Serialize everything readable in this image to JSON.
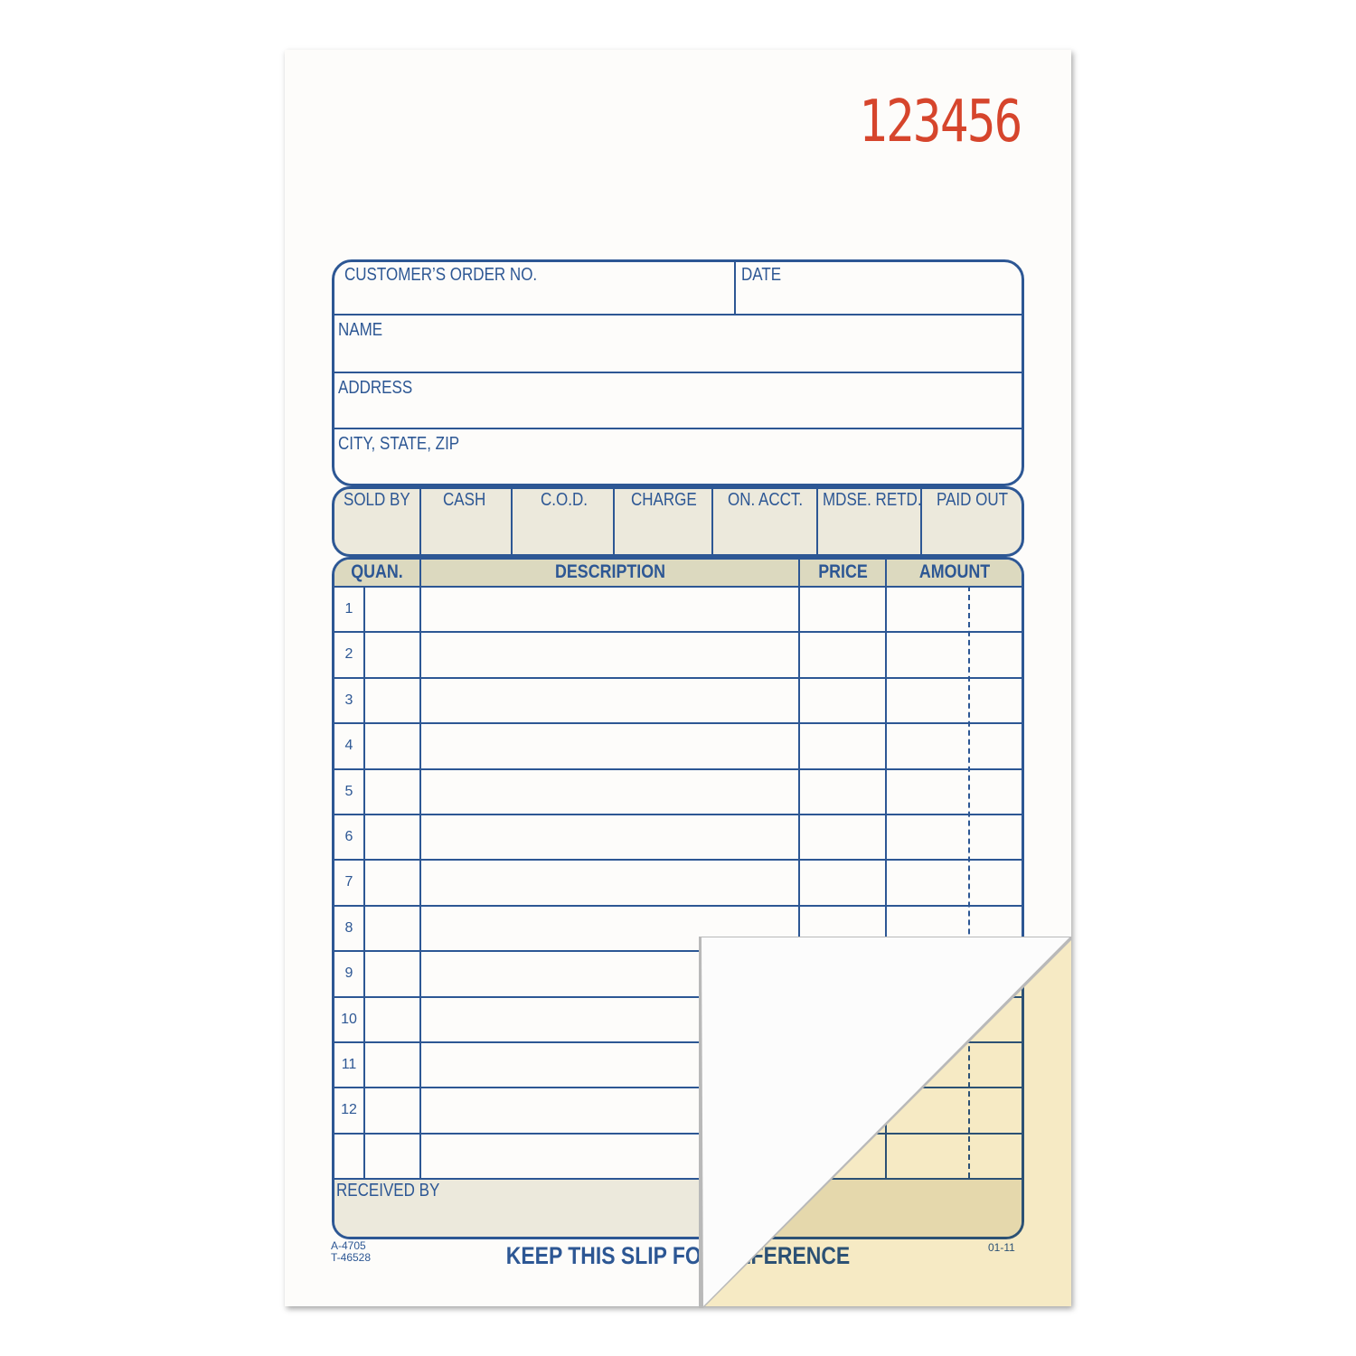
{
  "serial_number": "123456",
  "header_fields": {
    "order_no": "CUSTOMER’S ORDER NO.",
    "date": "DATE",
    "name": "NAME",
    "address": "ADDRESS",
    "city": "CITY, STATE, ZIP"
  },
  "payment_fields": [
    "SOLD BY",
    "CASH",
    "C.O.D.",
    "CHARGE",
    "ON. ACCT.",
    "MDSE. RETD.",
    "PAID OUT"
  ],
  "table_headers": {
    "quan": "QUAN.",
    "description": "DESCRIPTION",
    "price": "PRICE",
    "amount": "AMOUNT"
  },
  "row_numbers": [
    "1",
    "2",
    "3",
    "4",
    "5",
    "6",
    "7",
    "8",
    "9",
    "10",
    "11",
    "12"
  ],
  "received_by": "RECEIVED BY",
  "footer": {
    "code1": "A-4705",
    "code2": "T-46528",
    "message": "KEEP THIS SLIP FOR REFERENCE",
    "date_code": "01-11"
  },
  "colors": {
    "ink": "#2d5794",
    "serial": "#d6452c",
    "shade": "#ecE9dc",
    "header_shade": "#dcd9bf",
    "carbon_copy": "#f8edc8"
  }
}
